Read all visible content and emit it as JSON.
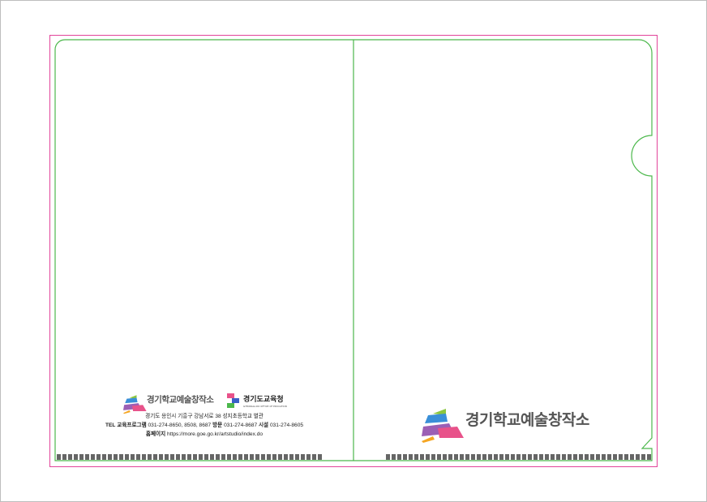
{
  "left_panel": {
    "logo_text": "경기학교예술창작소",
    "edu_office_name": "경기도교육청",
    "edu_office_subtitle": "GYEONGGI-DO OFFICE OF EDUCATION",
    "address": "경기도 용인시 기흥구 강남서로 38 성지초등학교 별관",
    "tel_label": "TEL",
    "program_label": "교육프로그램",
    "program_phone": "031-274-8650, 8508, 8687",
    "visit_label": "방문",
    "visit_phone": "031-274-8687",
    "facility_label": "시설",
    "facility_phone": "031-274-8605",
    "homepage_label": "홈페이지",
    "homepage_url": "https://more.goe.go.kr/artstudio/index.do"
  },
  "right_panel": {
    "logo_text": "경기학교예술창작소"
  },
  "colors": {
    "trim_line": "#e2449a",
    "die_line": "#4cb84c",
    "logo_pink": "#e8528a",
    "logo_purple": "#9b5fb5",
    "logo_blue": "#3a8fd8",
    "logo_green": "#8cc63f",
    "logo_yellow": "#f5a623",
    "dash": "#666666"
  }
}
